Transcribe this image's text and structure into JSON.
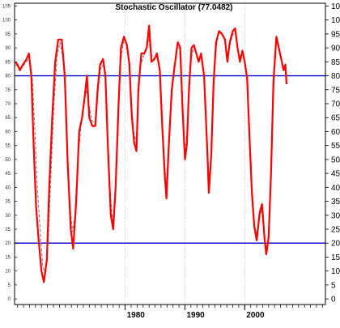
{
  "chart_data": {
    "type": "line",
    "title": "Stochastic Oscillator (77.0482)",
    "xlabel": "",
    "ylabel": "",
    "ylim": [
      -2,
      106
    ],
    "xlim": [
      1961.5,
      2013.5
    ],
    "grid": true,
    "y_ticks_left": [
      0,
      5,
      10,
      15,
      20,
      25,
      30,
      35,
      40,
      45,
      50,
      55,
      60,
      65,
      70,
      75,
      80,
      85,
      90,
      95,
      100,
      105
    ],
    "y_ticks_right": [
      0,
      5,
      10,
      15,
      20,
      25,
      30,
      35,
      40,
      45,
      50,
      55,
      60,
      65,
      70,
      75,
      80,
      85,
      90,
      95,
      100,
      105
    ],
    "x_tick_labels": [
      {
        "label": "1980",
        "x": 1980
      },
      {
        "label": "1990",
        "x": 1990
      },
      {
        "label": "2000",
        "x": 2000
      }
    ],
    "reference_lines": [
      {
        "value": 80,
        "color": "#0000cc"
      },
      {
        "value": 20,
        "color": "#0000cc"
      }
    ],
    "series": [
      {
        "style": "solid",
        "color": "#ff0000",
        "points": [
          [
            1961.6,
            85
          ],
          [
            1962.0,
            84
          ],
          [
            1962.4,
            82
          ],
          [
            1962.9,
            84
          ],
          [
            1963.5,
            86
          ],
          [
            1963.9,
            88
          ],
          [
            1964.3,
            80
          ],
          [
            1964.7,
            55
          ],
          [
            1965.1,
            33
          ],
          [
            1965.5,
            22
          ],
          [
            1966.0,
            10
          ],
          [
            1966.4,
            6
          ],
          [
            1966.9,
            14
          ],
          [
            1967.3,
            40
          ],
          [
            1967.8,
            65
          ],
          [
            1968.3,
            85
          ],
          [
            1968.8,
            93
          ],
          [
            1969.4,
            93
          ],
          [
            1969.9,
            80
          ],
          [
            1970.4,
            48
          ],
          [
            1970.9,
            25
          ],
          [
            1971.3,
            18
          ],
          [
            1971.8,
            35
          ],
          [
            1972.3,
            60
          ],
          [
            1972.8,
            65
          ],
          [
            1973.2,
            72
          ],
          [
            1973.6,
            80
          ],
          [
            1974.0,
            65
          ],
          [
            1974.5,
            62
          ],
          [
            1975.0,
            62
          ],
          [
            1975.4,
            75
          ],
          [
            1975.8,
            84
          ],
          [
            1976.3,
            86
          ],
          [
            1976.7,
            80
          ],
          [
            1977.1,
            55
          ],
          [
            1977.6,
            30
          ],
          [
            1978.0,
            25
          ],
          [
            1978.4,
            40
          ],
          [
            1978.9,
            70
          ],
          [
            1979.3,
            90
          ],
          [
            1979.8,
            94
          ],
          [
            1980.3,
            91
          ],
          [
            1980.7,
            84
          ],
          [
            1981.1,
            66
          ],
          [
            1981.5,
            56
          ],
          [
            1981.9,
            53
          ],
          [
            1982.2,
            75
          ],
          [
            1982.7,
            88
          ],
          [
            1983.2,
            88
          ],
          [
            1983.6,
            90
          ],
          [
            1984.0,
            98
          ],
          [
            1984.4,
            85
          ],
          [
            1984.9,
            86
          ],
          [
            1985.3,
            88
          ],
          [
            1985.8,
            82
          ],
          [
            1986.2,
            62
          ],
          [
            1986.6,
            45
          ],
          [
            1986.9,
            36
          ],
          [
            1987.3,
            55
          ],
          [
            1987.8,
            75
          ],
          [
            1988.3,
            84
          ],
          [
            1988.8,
            92
          ],
          [
            1989.2,
            90
          ],
          [
            1989.6,
            68
          ],
          [
            1990.0,
            50
          ],
          [
            1990.3,
            55
          ],
          [
            1990.7,
            76
          ],
          [
            1991.1,
            90
          ],
          [
            1991.5,
            91
          ],
          [
            1991.9,
            88
          ],
          [
            1992.3,
            85
          ],
          [
            1992.7,
            88
          ],
          [
            1993.2,
            80
          ],
          [
            1993.7,
            55
          ],
          [
            1994.0,
            38
          ],
          [
            1994.4,
            52
          ],
          [
            1994.8,
            78
          ],
          [
            1995.2,
            92
          ],
          [
            1995.7,
            96
          ],
          [
            1996.2,
            95
          ],
          [
            1996.7,
            93
          ],
          [
            1997.1,
            85
          ],
          [
            1997.5,
            92
          ],
          [
            1998.0,
            96
          ],
          [
            1998.4,
            97
          ],
          [
            1998.8,
            90
          ],
          [
            1999.2,
            85
          ],
          [
            1999.6,
            89
          ],
          [
            2000.0,
            85
          ],
          [
            2000.4,
            79
          ],
          [
            2000.8,
            58
          ],
          [
            2001.2,
            38
          ],
          [
            2001.6,
            26
          ],
          [
            2002.0,
            21
          ],
          [
            2002.5,
            31
          ],
          [
            2002.9,
            34
          ],
          [
            2003.3,
            22
          ],
          [
            2003.6,
            16
          ],
          [
            2004.0,
            22
          ],
          [
            2004.4,
            45
          ],
          [
            2004.8,
            78
          ],
          [
            2005.3,
            94
          ],
          [
            2005.7,
            90
          ],
          [
            2006.1,
            86
          ],
          [
            2006.5,
            82
          ],
          [
            2006.8,
            84
          ],
          [
            2007.0,
            77
          ]
        ]
      },
      {
        "style": "dashed",
        "color": "#777777",
        "points": [
          [
            1961.6,
            84
          ],
          [
            1962.2,
            83
          ],
          [
            1962.8,
            83
          ],
          [
            1963.4,
            85
          ],
          [
            1964.0,
            86
          ],
          [
            1964.5,
            78
          ],
          [
            1964.9,
            60
          ],
          [
            1965.3,
            40
          ],
          [
            1965.8,
            24
          ],
          [
            1966.2,
            12
          ],
          [
            1966.6,
            9
          ],
          [
            1967.1,
            20
          ],
          [
            1967.6,
            45
          ],
          [
            1968.1,
            70
          ],
          [
            1968.6,
            87
          ],
          [
            1969.1,
            92
          ],
          [
            1969.7,
            85
          ],
          [
            1970.2,
            60
          ],
          [
            1970.7,
            35
          ],
          [
            1971.2,
            24
          ],
          [
            1971.6,
            30
          ],
          [
            1972.1,
            50
          ],
          [
            1972.6,
            62
          ],
          [
            1973.0,
            68
          ],
          [
            1973.5,
            75
          ],
          [
            1973.9,
            70
          ],
          [
            1974.4,
            64
          ],
          [
            1974.9,
            63
          ],
          [
            1975.3,
            70
          ],
          [
            1975.7,
            80
          ],
          [
            1976.1,
            84
          ],
          [
            1976.6,
            82
          ],
          [
            1977.0,
            62
          ],
          [
            1977.5,
            38
          ],
          [
            1977.9,
            28
          ],
          [
            1978.3,
            35
          ],
          [
            1978.8,
            60
          ],
          [
            1979.2,
            84
          ],
          [
            1979.7,
            92
          ],
          [
            1980.2,
            91
          ],
          [
            1980.6,
            86
          ],
          [
            1981.0,
            72
          ],
          [
            1981.4,
            60
          ],
          [
            1981.8,
            56
          ],
          [
            1982.1,
            68
          ],
          [
            1982.6,
            84
          ],
          [
            1983.1,
            87
          ],
          [
            1983.5,
            89
          ],
          [
            1983.9,
            94
          ],
          [
            1984.3,
            88
          ],
          [
            1984.8,
            86
          ],
          [
            1985.2,
            87
          ],
          [
            1985.7,
            84
          ],
          [
            1986.1,
            68
          ],
          [
            1986.5,
            52
          ],
          [
            1986.9,
            40
          ],
          [
            1987.2,
            50
          ],
          [
            1987.7,
            70
          ],
          [
            1988.2,
            82
          ],
          [
            1988.7,
            90
          ],
          [
            1989.1,
            90
          ],
          [
            1989.5,
            74
          ],
          [
            1989.9,
            56
          ],
          [
            1990.3,
            54
          ],
          [
            1990.6,
            70
          ],
          [
            1991.0,
            86
          ],
          [
            1991.5,
            90
          ],
          [
            1991.9,
            88
          ],
          [
            1992.3,
            86
          ],
          [
            1992.7,
            87
          ],
          [
            1993.1,
            82
          ],
          [
            1993.6,
            62
          ],
          [
            1994.0,
            44
          ],
          [
            1994.3,
            48
          ],
          [
            1994.7,
            70
          ],
          [
            1995.1,
            88
          ],
          [
            1995.6,
            95
          ],
          [
            1996.1,
            95
          ],
          [
            1996.6,
            93
          ],
          [
            1997.0,
            88
          ],
          [
            1997.4,
            90
          ],
          [
            1997.9,
            94
          ],
          [
            1998.3,
            96
          ],
          [
            1998.7,
            92
          ],
          [
            1999.1,
            87
          ],
          [
            1999.5,
            88
          ],
          [
            1999.9,
            86
          ],
          [
            2000.3,
            81
          ],
          [
            2000.7,
            64
          ],
          [
            2001.1,
            44
          ],
          [
            2001.5,
            30
          ],
          [
            2001.9,
            23
          ],
          [
            2002.4,
            28
          ],
          [
            2002.8,
            32
          ],
          [
            2003.2,
            25
          ],
          [
            2003.5,
            18
          ],
          [
            2003.9,
            20
          ],
          [
            2004.3,
            38
          ],
          [
            2004.7,
            70
          ],
          [
            2005.2,
            90
          ],
          [
            2005.6,
            91
          ],
          [
            2006.0,
            87
          ],
          [
            2006.4,
            84
          ],
          [
            2006.8,
            83
          ],
          [
            2007.0,
            80
          ]
        ]
      }
    ]
  }
}
